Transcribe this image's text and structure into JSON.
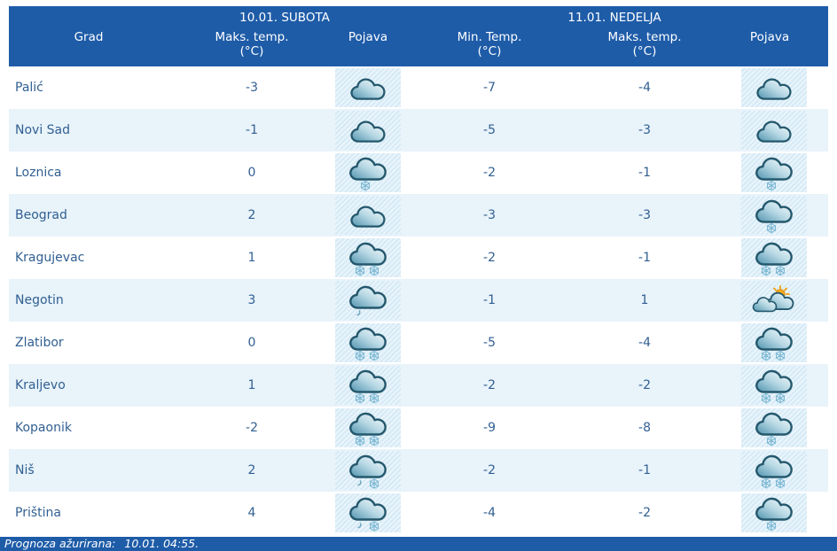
{
  "header": {
    "day1": "10.01. SUBOTA",
    "day2": "11.01. NEDELJA",
    "columns": {
      "city": "Grad",
      "sat_max": "Maks. temp.",
      "sat_max_unit": "(°C)",
      "sat_pojava": "Pojava",
      "sun_min": "Min. Temp.",
      "sun_min_unit": "(°C)",
      "sun_max": "Maks. temp.",
      "sun_max_unit": "(°C)",
      "sun_pojava": "Pojava"
    }
  },
  "rows": [
    {
      "city": "Palić",
      "sat_max": "-3",
      "sat_icon": "cloud",
      "sun_min": "-7",
      "sun_max": "-4",
      "sun_icon": "cloud"
    },
    {
      "city": "Novi Sad",
      "sat_max": "-1",
      "sat_icon": "cloud",
      "sun_min": "-5",
      "sun_max": "-3",
      "sun_icon": "cloud"
    },
    {
      "city": "Loznica",
      "sat_max": "0",
      "sat_icon": "cloud-snow-1",
      "sun_min": "-2",
      "sun_max": "-1",
      "sun_icon": "cloud-snow-1"
    },
    {
      "city": "Beograd",
      "sat_max": "2",
      "sat_icon": "cloud",
      "sun_min": "-3",
      "sun_max": "-3",
      "sun_icon": "cloud-snow-1"
    },
    {
      "city": "Kragujevac",
      "sat_max": "1",
      "sat_icon": "cloud-snow-2",
      "sun_min": "-2",
      "sun_max": "-1",
      "sun_icon": "cloud-snow-2"
    },
    {
      "city": "Negotin",
      "sat_max": "3",
      "sat_icon": "cloud-drizzle",
      "sun_min": "-1",
      "sun_max": "1",
      "sun_icon": "sun-clouds"
    },
    {
      "city": "Zlatibor",
      "sat_max": "0",
      "sat_icon": "cloud-snow-2",
      "sun_min": "-5",
      "sun_max": "-4",
      "sun_icon": "cloud-snow-2"
    },
    {
      "city": "Kraljevo",
      "sat_max": "1",
      "sat_icon": "cloud-snow-2",
      "sun_min": "-2",
      "sun_max": "-2",
      "sun_icon": "cloud-snow-2"
    },
    {
      "city": "Kopaonik",
      "sat_max": "-2",
      "sat_icon": "cloud-snow-2",
      "sun_min": "-9",
      "sun_max": "-8",
      "sun_icon": "cloud-snow-1"
    },
    {
      "city": "Niš",
      "sat_max": "2",
      "sat_icon": "cloud-sleet",
      "sun_min": "-2",
      "sun_max": "-1",
      "sun_icon": "cloud-snow-2"
    },
    {
      "city": "Priština",
      "sat_max": "4",
      "sat_icon": "cloud-sleet",
      "sun_min": "-4",
      "sun_max": "-2",
      "sun_icon": "cloud-snow-1"
    }
  ],
  "icon_legend": {
    "cloud": "cloudy",
    "cloud-snow-1": "cloudy with light snow",
    "cloud-snow-2": "cloudy with snow",
    "cloud-drizzle": "cloudy with drizzle",
    "cloud-sleet": "cloudy with sleet (rain and snow)",
    "sun-clouds": "partly sunny"
  },
  "footer": {
    "updated_label": "Prognoza ažurirana:",
    "updated_value": "10.01. 04:55."
  },
  "colors": {
    "header_bg": "#1e5ca8",
    "footer_bg": "#1e5ca8",
    "row_alt_bg": "#e8f3fa",
    "icon_cell_bg": "#dcedf7",
    "text": "#315f92",
    "sun": "#f6aa1c"
  }
}
